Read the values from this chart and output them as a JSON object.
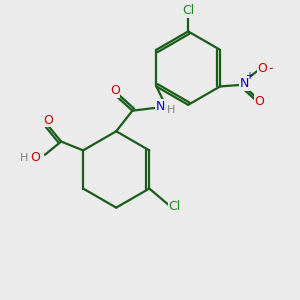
{
  "bg_color": "#ebebeb",
  "bond_color": "#1a5c1a",
  "bond_lw": 1.6,
  "atom_colors": {
    "O": "#cc0000",
    "N": "#0000cc",
    "Cl": "#1a8c1a",
    "H": "#808080",
    "C": "#1a5c1a"
  }
}
